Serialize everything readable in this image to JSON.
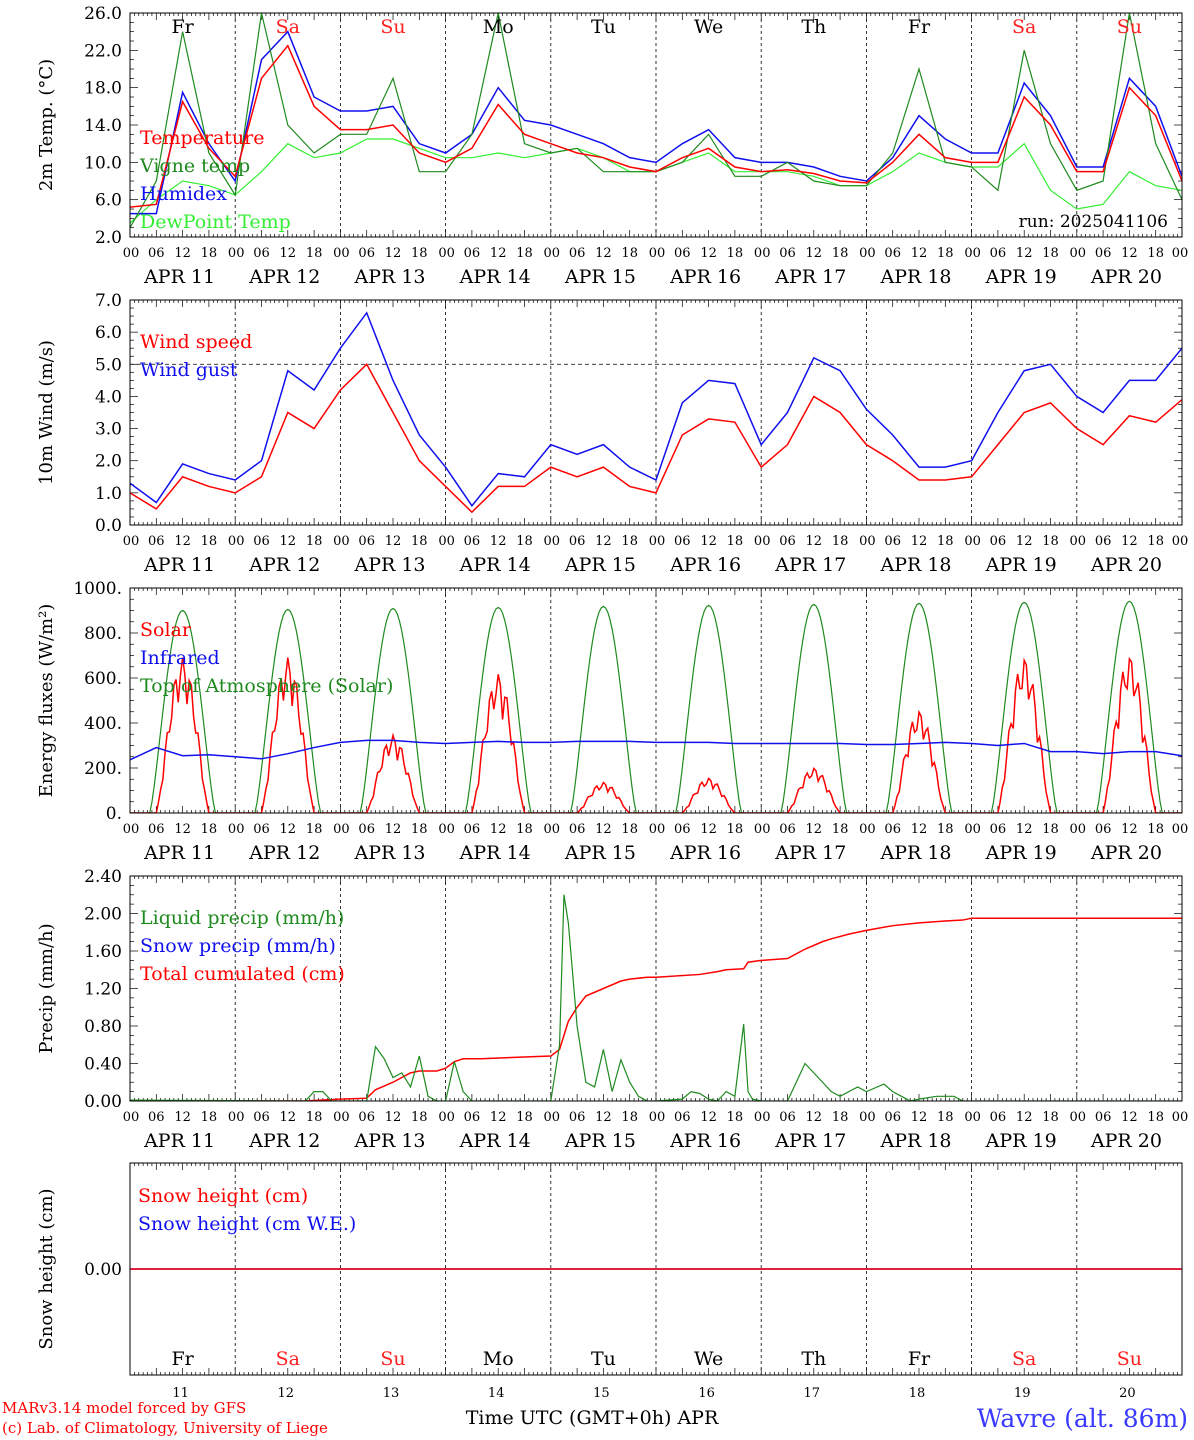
{
  "days": [
    {
      "day_abbr": "Fr",
      "weekend": false,
      "date_num": "11",
      "date_label": "APR 11"
    },
    {
      "day_abbr": "Sa",
      "weekend": true,
      "date_num": "12",
      "date_label": "APR 12"
    },
    {
      "day_abbr": "Su",
      "weekend": true,
      "date_num": "13",
      "date_label": "APR 13"
    },
    {
      "day_abbr": "Mo",
      "weekend": false,
      "date_num": "14",
      "date_label": "APR 14"
    },
    {
      "day_abbr": "Tu",
      "weekend": false,
      "date_num": "15",
      "date_label": "APR 15"
    },
    {
      "day_abbr": "We",
      "weekend": false,
      "date_num": "16",
      "date_label": "APR 16"
    },
    {
      "day_abbr": "Th",
      "weekend": false,
      "date_num": "17",
      "date_label": "APR 17"
    },
    {
      "day_abbr": "Fr",
      "weekend": false,
      "date_num": "18",
      "date_label": "APR 18"
    },
    {
      "day_abbr": "Sa",
      "weekend": true,
      "date_num": "19",
      "date_label": "APR 19"
    },
    {
      "day_abbr": "Su",
      "weekend": true,
      "date_num": "20",
      "date_label": "APR 20"
    }
  ],
  "hour_ticks": [
    "00",
    "06",
    "12",
    "18"
  ],
  "hour_tick_end": "00",
  "colors": {
    "weekday": "#000000",
    "weekend": "#ff2020",
    "red": "#ff0000",
    "darkgreen": "#1f8a1f",
    "blue": "#1010ee",
    "lightgreen": "#33ee33",
    "footer_red": "#ff0000",
    "location_blue": "#3a3aff"
  },
  "footer": {
    "model": "MARv3.14 model forced by GFS",
    "credit": "(c) Lab. of Climatology, University of Liege",
    "time_label": "Time UTC (GMT+0h) APR",
    "location": "Wavre (alt. 86m)"
  },
  "chart_data": [
    {
      "type": "line",
      "ylabel": "2m Temp. (°C)",
      "ylim": [
        2.0,
        26.0
      ],
      "yticks": [
        "2.0",
        "6.0",
        "10.0",
        "14.0",
        "18.0",
        "22.0",
        "26.0"
      ],
      "run_label": "run: 2025041106",
      "x_unit": "hours since APR 11 00 UTC",
      "series": [
        {
          "name": "Temperature",
          "color_key": "red",
          "x": [
            0,
            6,
            12,
            18,
            24,
            30,
            36,
            42,
            48,
            54,
            60,
            66,
            72,
            78,
            84,
            90,
            96,
            102,
            108,
            114,
            120,
            126,
            132,
            138,
            144,
            150,
            156,
            162,
            168,
            174,
            180,
            186,
            192,
            198,
            204,
            210,
            216,
            222,
            228,
            234,
            240
          ],
          "y": [
            5.2,
            5.5,
            16.5,
            11.5,
            8.5,
            19.0,
            22.5,
            16.0,
            13.5,
            13.5,
            14.0,
            11.0,
            10.0,
            11.5,
            16.2,
            13.0,
            12.0,
            11.0,
            10.5,
            9.5,
            9.0,
            10.5,
            11.5,
            9.5,
            9.0,
            9.2,
            8.8,
            8.0,
            7.8,
            10.0,
            13.0,
            10.5,
            10.0,
            10.0,
            17.0,
            14.0,
            9.0,
            9.0,
            18.0,
            15.0,
            8.0
          ]
        },
        {
          "name": "Vigne temp",
          "color_key": "darkgreen",
          "x": [
            0,
            6,
            12,
            18,
            24,
            30,
            36,
            42,
            48,
            54,
            60,
            66,
            72,
            78,
            84,
            90,
            96,
            102,
            108,
            114,
            120,
            126,
            132,
            138,
            144,
            150,
            156,
            162,
            168,
            174,
            180,
            186,
            192,
            198,
            204,
            210,
            216,
            222,
            228,
            234,
            240
          ],
          "y": [
            3.0,
            8.0,
            24.0,
            11.0,
            6.5,
            26.0,
            14.0,
            11.0,
            13.0,
            13.0,
            19.0,
            9.0,
            9.0,
            13.0,
            26.0,
            12.0,
            11.0,
            11.5,
            9.0,
            9.0,
            9.0,
            10.0,
            13.0,
            8.5,
            8.5,
            10.0,
            8.0,
            7.5,
            7.5,
            11.0,
            20.0,
            10.0,
            9.5,
            7.0,
            22.0,
            12.0,
            7.0,
            8.0,
            26.0,
            12.0,
            6.0
          ]
        },
        {
          "name": "Humidex",
          "color_key": "blue",
          "x": [
            0,
            6,
            12,
            18,
            24,
            30,
            36,
            42,
            48,
            54,
            60,
            66,
            72,
            78,
            84,
            90,
            96,
            102,
            108,
            114,
            120,
            126,
            132,
            138,
            144,
            150,
            156,
            162,
            168,
            174,
            180,
            186,
            192,
            198,
            204,
            210,
            216,
            222,
            228,
            234,
            240
          ],
          "y": [
            4.5,
            4.5,
            17.5,
            12.0,
            8.0,
            21.0,
            24.0,
            17.0,
            15.5,
            15.5,
            16.0,
            12.0,
            11.0,
            13.0,
            18.0,
            14.5,
            14.0,
            13.0,
            12.0,
            10.5,
            10.0,
            12.0,
            13.5,
            10.5,
            10.0,
            10.0,
            9.5,
            8.5,
            8.0,
            10.5,
            15.0,
            12.5,
            11.0,
            11.0,
            18.5,
            15.0,
            9.5,
            9.5,
            19.0,
            16.0,
            8.5
          ]
        },
        {
          "name": "DewPoint Temp",
          "color_key": "lightgreen",
          "x": [
            0,
            6,
            12,
            18,
            24,
            30,
            36,
            42,
            48,
            54,
            60,
            66,
            72,
            78,
            84,
            90,
            96,
            102,
            108,
            114,
            120,
            126,
            132,
            138,
            144,
            150,
            156,
            162,
            168,
            174,
            180,
            186,
            192,
            198,
            204,
            210,
            216,
            222,
            228,
            234,
            240
          ],
          "y": [
            3.5,
            6.0,
            8.0,
            7.5,
            6.5,
            9.0,
            12.0,
            10.5,
            11.0,
            12.5,
            12.5,
            11.5,
            10.5,
            10.5,
            11.0,
            10.5,
            11.0,
            11.5,
            10.5,
            9.0,
            9.0,
            10.0,
            11.0,
            9.0,
            9.0,
            9.0,
            8.5,
            7.5,
            7.5,
            9.0,
            11.0,
            10.0,
            9.5,
            9.5,
            12.0,
            7.0,
            5.0,
            5.5,
            9.0,
            7.5,
            7.0
          ]
        }
      ]
    },
    {
      "type": "line",
      "ylabel": "10m Wind (m/s)",
      "ylim": [
        0.0,
        7.0
      ],
      "yticks": [
        "0.0",
        "1.0",
        "2.0",
        "3.0",
        "4.0",
        "5.0",
        "6.0",
        "7.0"
      ],
      "reference_line": 5.0,
      "x_unit": "hours since APR 11 00 UTC",
      "series": [
        {
          "name": "Wind speed",
          "color_key": "red",
          "x": [
            0,
            6,
            12,
            18,
            24,
            30,
            36,
            42,
            48,
            54,
            60,
            66,
            72,
            78,
            84,
            90,
            96,
            102,
            108,
            114,
            120,
            126,
            132,
            138,
            144,
            150,
            156,
            162,
            168,
            174,
            180,
            186,
            192,
            198,
            204,
            210,
            216,
            222,
            228,
            234,
            240
          ],
          "y": [
            1.0,
            0.5,
            1.5,
            1.2,
            1.0,
            1.5,
            3.5,
            3.0,
            4.2,
            5.0,
            3.5,
            2.0,
            1.2,
            0.4,
            1.2,
            1.2,
            1.8,
            1.5,
            1.8,
            1.2,
            1.0,
            2.8,
            3.3,
            3.2,
            1.8,
            2.5,
            4.0,
            3.5,
            2.5,
            2.0,
            1.4,
            1.4,
            1.5,
            2.5,
            3.5,
            3.8,
            3.0,
            2.5,
            3.4,
            3.2,
            3.9
          ]
        },
        {
          "name": "Wind gust",
          "color_key": "blue",
          "x": [
            0,
            6,
            12,
            18,
            24,
            30,
            36,
            42,
            48,
            54,
            60,
            66,
            72,
            78,
            84,
            90,
            96,
            102,
            108,
            114,
            120,
            126,
            132,
            138,
            144,
            150,
            156,
            162,
            168,
            174,
            180,
            186,
            192,
            198,
            204,
            210,
            216,
            222,
            228,
            234,
            240
          ],
          "y": [
            1.3,
            0.7,
            1.9,
            1.6,
            1.4,
            2.0,
            4.8,
            4.2,
            5.5,
            6.6,
            4.5,
            2.8,
            1.8,
            0.6,
            1.6,
            1.5,
            2.5,
            2.2,
            2.5,
            1.8,
            1.4,
            3.8,
            4.5,
            4.4,
            2.5,
            3.5,
            5.2,
            4.8,
            3.6,
            2.8,
            1.8,
            1.8,
            2.0,
            3.5,
            4.8,
            5.0,
            4.0,
            3.5,
            4.5,
            4.5,
            5.5
          ]
        }
      ]
    },
    {
      "type": "line",
      "ylabel": "Energy fluxes (W/m²)",
      "ylim": [
        0,
        1100
      ],
      "yticks": [
        "0.",
        "200.",
        "400.",
        "600.",
        "800.",
        "1000."
      ],
      "x_unit": "hours since APR 11 00 UTC",
      "day_peaks": {
        "toa": [
          990,
          995,
          1000,
          1005,
          1010,
          1015,
          1020,
          1025,
          1030,
          1035
        ],
        "solar": [
          760,
          760,
          380,
          680,
          150,
          170,
          220,
          500,
          760,
          770
        ]
      },
      "series": [
        {
          "name": "Solar",
          "color_key": "red"
        },
        {
          "name": "Infrared",
          "color_key": "blue",
          "x": [
            0,
            6,
            12,
            18,
            24,
            30,
            36,
            42,
            48,
            54,
            60,
            66,
            72,
            78,
            84,
            90,
            96,
            102,
            108,
            114,
            120,
            126,
            132,
            138,
            144,
            150,
            156,
            162,
            168,
            174,
            180,
            186,
            192,
            198,
            204,
            210,
            216,
            222,
            228,
            234,
            240
          ],
          "y": [
            260,
            320,
            280,
            285,
            275,
            265,
            290,
            320,
            345,
            355,
            355,
            345,
            340,
            345,
            350,
            345,
            345,
            350,
            350,
            350,
            345,
            345,
            345,
            340,
            340,
            340,
            340,
            340,
            335,
            335,
            340,
            345,
            340,
            330,
            340,
            300,
            300,
            290,
            300,
            300,
            280
          ]
        },
        {
          "name": "Top of Atmosphere (Solar)",
          "color_key": "darkgreen"
        }
      ]
    },
    {
      "type": "line",
      "ylabel": "Precip (mm/h)",
      "ylim": [
        0.0,
        2.4
      ],
      "yticks": [
        "0.00",
        "0.40",
        "0.80",
        "1.20",
        "1.60",
        "2.00",
        "2.40"
      ],
      "x_unit": "hours since APR 11 00 UTC",
      "series": [
        {
          "name": "Liquid precip (mm/h)",
          "color_key": "darkgreen",
          "x": [
            0,
            40,
            42,
            44,
            46,
            48,
            50,
            54,
            56,
            58,
            60,
            62,
            64,
            66,
            68,
            70,
            72,
            74,
            76,
            78,
            96,
            98,
            99,
            100,
            102,
            104,
            106,
            108,
            110,
            112,
            114,
            116,
            118,
            120,
            126,
            128,
            130,
            132,
            134,
            136,
            138,
            140,
            141,
            142,
            144,
            150,
            152,
            154,
            156,
            158,
            160,
            162,
            164,
            166,
            168,
            172,
            174,
            176,
            178,
            180,
            184,
            186,
            188,
            190,
            192,
            240
          ],
          "y": [
            0.01,
            0.0,
            0.1,
            0.1,
            0.0,
            0.0,
            0.0,
            0.0,
            0.58,
            0.45,
            0.25,
            0.3,
            0.15,
            0.48,
            0.05,
            0.0,
            0.0,
            0.42,
            0.1,
            0.0,
            0.0,
            0.6,
            2.2,
            1.9,
            0.8,
            0.2,
            0.15,
            0.55,
            0.1,
            0.44,
            0.2,
            0.05,
            0.0,
            0.0,
            0.02,
            0.1,
            0.08,
            0.02,
            0.0,
            0.1,
            0.05,
            0.82,
            0.1,
            0.02,
            0.0,
            0.0,
            0.2,
            0.4,
            0.3,
            0.2,
            0.1,
            0.05,
            0.1,
            0.15,
            0.1,
            0.18,
            0.1,
            0.05,
            0.0,
            0.02,
            0.05,
            0.05,
            0.05,
            0.0,
            0.0,
            0.0
          ]
        },
        {
          "name": "Snow precip (mm/h)",
          "color_key": "blue"
        },
        {
          "name": "Total cumulated (cm)",
          "color_key": "red",
          "x": [
            0,
            40,
            48,
            54,
            56,
            60,
            64,
            66,
            70,
            72,
            74,
            76,
            80,
            90,
            96,
            98,
            99,
            100,
            102,
            104,
            108,
            112,
            114,
            118,
            120,
            130,
            134,
            136,
            140,
            141,
            144,
            150,
            154,
            158,
            160,
            164,
            168,
            174,
            180,
            186,
            190,
            192,
            240
          ],
          "y": [
            0.0,
            0.0,
            0.02,
            0.03,
            0.12,
            0.2,
            0.3,
            0.32,
            0.32,
            0.35,
            0.42,
            0.45,
            0.45,
            0.47,
            0.48,
            0.55,
            0.7,
            0.85,
            1.0,
            1.12,
            1.2,
            1.28,
            1.3,
            1.32,
            1.32,
            1.35,
            1.38,
            1.4,
            1.41,
            1.48,
            1.5,
            1.52,
            1.62,
            1.7,
            1.73,
            1.78,
            1.82,
            1.87,
            1.9,
            1.92,
            1.93,
            1.95,
            1.95
          ]
        }
      ]
    },
    {
      "type": "line",
      "ylabel": "Snow height (cm)",
      "ylim": [
        -1,
        1
      ],
      "yticks": [
        "0.00"
      ],
      "x_unit": "hours since APR 11 00 UTC",
      "series": [
        {
          "name": "Snow height (cm)",
          "color_key": "red",
          "x": [
            0,
            240
          ],
          "y": [
            0.0,
            0.0
          ]
        },
        {
          "name": "Snow height (cm W.E.)",
          "color_key": "blue",
          "x": [
            0,
            240
          ],
          "y": [
            0.0,
            0.0
          ]
        }
      ]
    }
  ]
}
